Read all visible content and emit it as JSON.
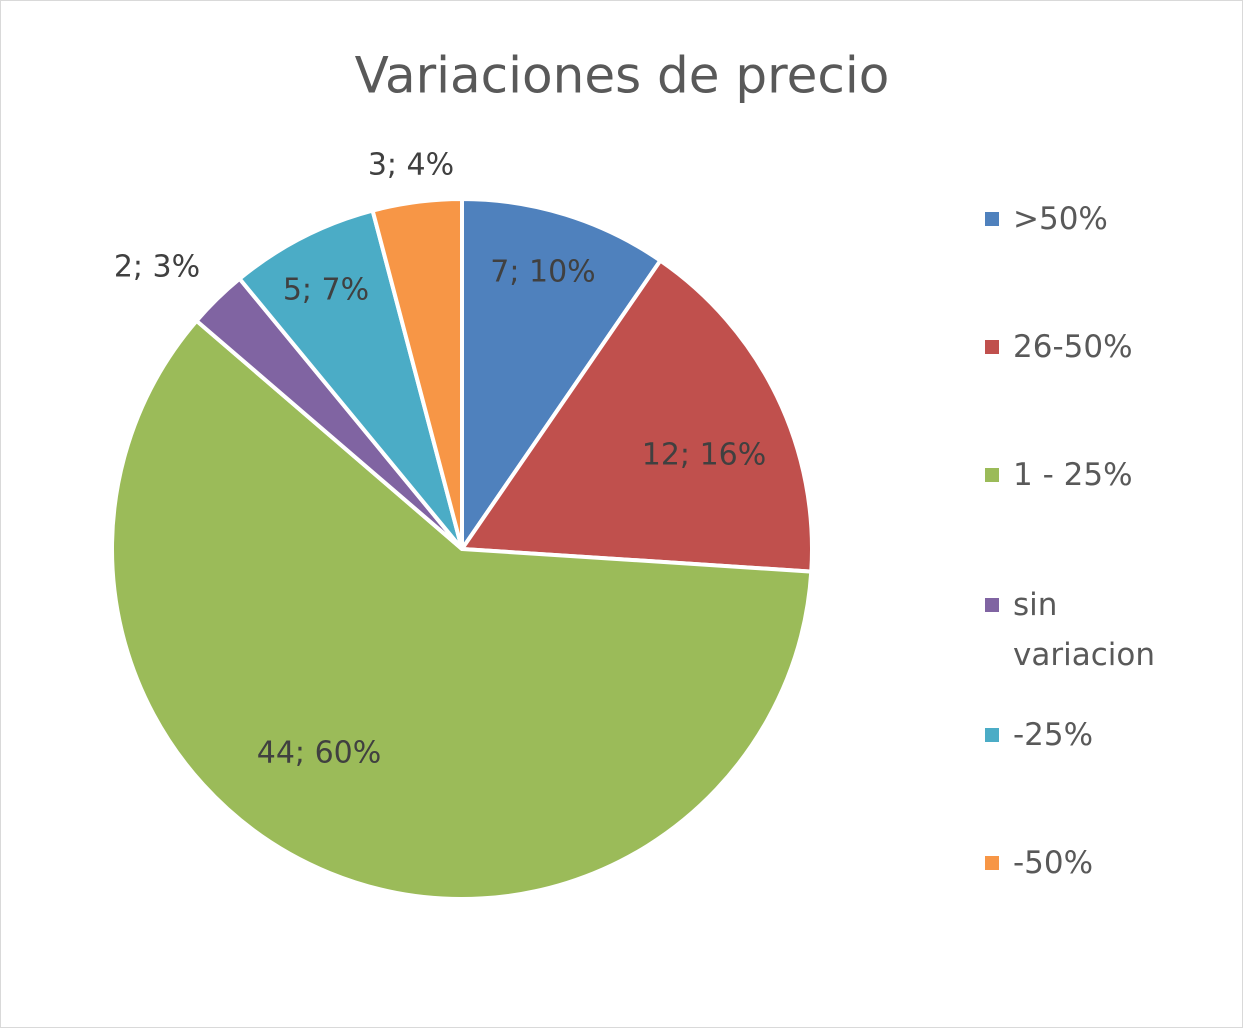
{
  "chart_data": {
    "type": "pie",
    "title": "Variaciones de precio",
    "categories": [
      ">50%",
      "26-50%",
      "1 - 25%",
      "sin variacion",
      "-25%",
      "-50%"
    ],
    "values": [
      7,
      12,
      44,
      2,
      5,
      3
    ],
    "value_labels": [
      "7; 10%",
      "12; 16%",
      "44; 60%",
      "2; 3%",
      "5; 7%",
      "3; 4%"
    ],
    "colors": [
      "#4f81bd",
      "#c0504d",
      "#9bbb59",
      "#8064a2",
      "#4bacc6",
      "#f79646"
    ],
    "legend": "right"
  }
}
